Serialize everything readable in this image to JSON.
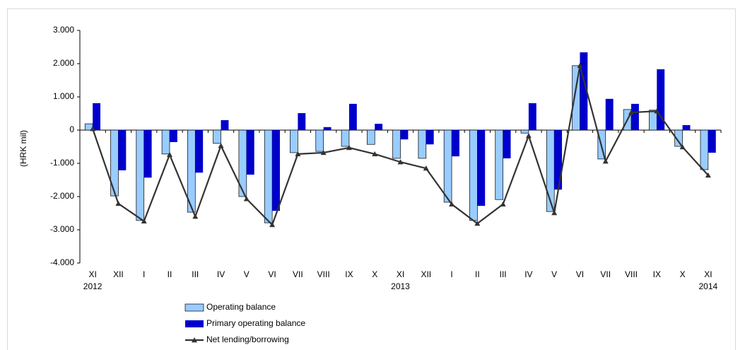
{
  "chart_data": {
    "type": "bar",
    "y_label": "(HRK mil)",
    "categories": [
      "XI",
      "XII",
      "I",
      "II",
      "III",
      "IV",
      "V",
      "VI",
      "VII",
      "VIII",
      "IX",
      "X",
      "XI",
      "XII",
      "I",
      "II",
      "III",
      "IV",
      "V",
      "VI",
      "VII",
      "VIII",
      "IX",
      "X",
      "XI"
    ],
    "category_years": [
      "2012",
      null,
      null,
      null,
      null,
      null,
      null,
      null,
      null,
      null,
      null,
      null,
      "2013",
      null,
      null,
      null,
      null,
      null,
      null,
      null,
      null,
      null,
      null,
      null,
      "2014"
    ],
    "series": [
      {
        "name": "Operating balance",
        "color": "#99ccff",
        "type": "bar",
        "values": [
          190,
          -1980,
          -2720,
          -720,
          -2470,
          -400,
          -2000,
          -2790,
          -680,
          -640,
          -490,
          -430,
          -850,
          -850,
          -2170,
          -2720,
          -2090,
          -90,
          -2450,
          1940,
          -870,
          620,
          600,
          -490,
          -1190
        ]
      },
      {
        "name": "Primary operating balance",
        "color": "#0000cc",
        "type": "bar",
        "values": [
          810,
          -1210,
          -1430,
          -360,
          -1280,
          300,
          -1340,
          -2430,
          510,
          90,
          790,
          190,
          -280,
          -430,
          -790,
          -2280,
          -850,
          810,
          -1790,
          2340,
          940,
          790,
          1830,
          150,
          -680
        ]
      },
      {
        "name": "Net lending/borrowing",
        "color": "#333333",
        "type": "line",
        "values": [
          40,
          -2210,
          -2740,
          -740,
          -2600,
          -470,
          -2070,
          -2850,
          -720,
          -680,
          -530,
          -720,
          -960,
          -1150,
          -2230,
          -2810,
          -2230,
          -170,
          -2490,
          1940,
          -940,
          530,
          570,
          -510,
          -1360
        ]
      }
    ],
    "ylim": [
      -4000,
      3000
    ],
    "yticks": [
      {
        "value": -4000,
        "label": "-4.000"
      },
      {
        "value": -3000,
        "label": "-3.000"
      },
      {
        "value": -2000,
        "label": "-2.000"
      },
      {
        "value": -1000,
        "label": "-1.000"
      },
      {
        "value": 0,
        "label": "0"
      },
      {
        "value": 1000,
        "label": "1.000"
      },
      {
        "value": 2000,
        "label": "2.000"
      },
      {
        "value": 3000,
        "label": "3.000"
      }
    ],
    "grid": false
  }
}
